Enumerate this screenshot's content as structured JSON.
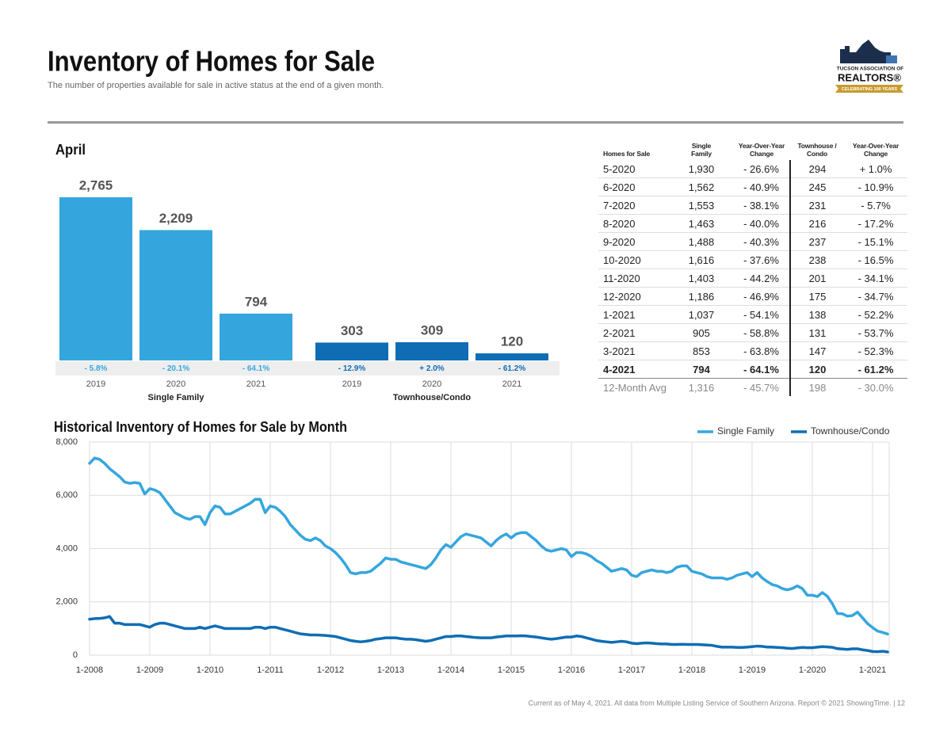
{
  "header": {
    "title": "Inventory of Homes for Sale",
    "subtitle": "The number of properties available for sale in active status at the end of a given month."
  },
  "logo": {
    "line1": "TUCSON ASSOCIATION OF",
    "line2": "REALTORS®",
    "line3": "CELEBRATING 100 YEARS"
  },
  "chart_data": [
    {
      "type": "bar",
      "title": "April",
      "groups": [
        {
          "name": "Single Family",
          "color": "#35a6dd",
          "categories": [
            "2019",
            "2020",
            "2021"
          ],
          "values": [
            2765,
            2209,
            794
          ],
          "value_labels": [
            "2,765",
            "2,209",
            "794"
          ],
          "change_labels": [
            "- 5.8%",
            "- 20.1%",
            "- 64.1%"
          ]
        },
        {
          "name": "Townhouse/Condo",
          "color": "#0f6db5",
          "categories": [
            "2019",
            "2020",
            "2021"
          ],
          "values": [
            303,
            309,
            120
          ],
          "value_labels": [
            "303",
            "309",
            "120"
          ],
          "change_labels": [
            "- 12.9%",
            "+ 2.0%",
            "- 61.2%"
          ]
        }
      ]
    },
    {
      "type": "line",
      "title": "Historical Inventory of Homes for Sale by Month",
      "categories": [
        "1-2008",
        null,
        null,
        null,
        null,
        null,
        null,
        null,
        null,
        null,
        null,
        null,
        "1-2009",
        null,
        null,
        null,
        null,
        null,
        null,
        null,
        null,
        null,
        null,
        null,
        "1-2010",
        null,
        null,
        null,
        null,
        null,
        null,
        null,
        null,
        null,
        null,
        null,
        "1-2011",
        null,
        null,
        null,
        null,
        null,
        null,
        null,
        null,
        null,
        null,
        null,
        "1-2012",
        null,
        null,
        null,
        null,
        null,
        null,
        null,
        null,
        null,
        null,
        null,
        "1-2013",
        null,
        null,
        null,
        null,
        null,
        null,
        null,
        null,
        null,
        null,
        null,
        "1-2014",
        null,
        null,
        null,
        null,
        null,
        null,
        null,
        null,
        null,
        null,
        null,
        "1-2015",
        null,
        null,
        null,
        null,
        null,
        null,
        null,
        null,
        null,
        null,
        null,
        "1-2016",
        null,
        null,
        null,
        null,
        null,
        null,
        null,
        null,
        null,
        null,
        null,
        "1-2017",
        null,
        null,
        null,
        null,
        null,
        null,
        null,
        null,
        null,
        null,
        null,
        "1-2018",
        null,
        null,
        null,
        null,
        null,
        null,
        null,
        null,
        null,
        null,
        null,
        "1-2019",
        null,
        null,
        null,
        null,
        null,
        null,
        null,
        null,
        null,
        null,
        null,
        "1-2020",
        null,
        null,
        null,
        null,
        null,
        null,
        null,
        null,
        null,
        null,
        null,
        "1-2021",
        null,
        null,
        null
      ],
      "series": [
        {
          "name": "Single Family",
          "color": "#35a6dd",
          "values": [
            7200,
            7400,
            7350,
            7200,
            7000,
            6850,
            6700,
            6500,
            6450,
            6480,
            6450,
            6050,
            6250,
            6200,
            6100,
            5850,
            5600,
            5350,
            5250,
            5150,
            5100,
            5200,
            5200,
            4900,
            5350,
            5600,
            5550,
            5300,
            5300,
            5400,
            5500,
            5600,
            5700,
            5850,
            5850,
            5350,
            5600,
            5550,
            5400,
            5200,
            4900,
            4700,
            4500,
            4350,
            4300,
            4400,
            4300,
            4100,
            4000,
            3850,
            3650,
            3400,
            3100,
            3050,
            3100,
            3100,
            3150,
            3300,
            3450,
            3650,
            3600,
            3600,
            3500,
            3450,
            3400,
            3350,
            3300,
            3250,
            3400,
            3650,
            3950,
            4150,
            4050,
            4250,
            4450,
            4550,
            4500,
            4450,
            4400,
            4250,
            4100,
            4300,
            4450,
            4550,
            4400,
            4550,
            4600,
            4600,
            4450,
            4300,
            4100,
            3950,
            3900,
            3950,
            4000,
            3950,
            3700,
            3850,
            3850,
            3800,
            3700,
            3550,
            3450,
            3300,
            3150,
            3200,
            3250,
            3200,
            3000,
            2950,
            3100,
            3150,
            3200,
            3150,
            3150,
            3100,
            3150,
            3300,
            3350,
            3350,
            3150,
            3100,
            3050,
            2950,
            2900,
            2900,
            2900,
            2850,
            2900,
            3000,
            3050,
            3100,
            2950,
            3100,
            2900,
            2765,
            2650,
            2600,
            2500,
            2450,
            2500,
            2600,
            2500,
            2250,
            2250,
            2200,
            2350,
            2209,
            1930,
            1562,
            1553,
            1463,
            1488,
            1616,
            1403,
            1186,
            1037,
            905,
            853,
            794
          ]
        },
        {
          "name": "Townhouse/Condo",
          "color": "#0f6db5",
          "values": [
            1350,
            1370,
            1380,
            1400,
            1450,
            1200,
            1200,
            1150,
            1150,
            1150,
            1150,
            1100,
            1050,
            1150,
            1200,
            1200,
            1150,
            1100,
            1050,
            1000,
            1000,
            1000,
            1050,
            1000,
            1050,
            1100,
            1050,
            1000,
            1000,
            1000,
            1000,
            1000,
            1000,
            1050,
            1050,
            1000,
            1050,
            1050,
            1000,
            950,
            900,
            850,
            800,
            780,
            760,
            760,
            750,
            740,
            720,
            700,
            650,
            600,
            550,
            520,
            500,
            520,
            550,
            600,
            620,
            650,
            650,
            650,
            620,
            600,
            600,
            580,
            550,
            520,
            550,
            600,
            650,
            700,
            700,
            720,
            720,
            700,
            680,
            660,
            650,
            650,
            650,
            680,
            700,
            720,
            720,
            720,
            730,
            720,
            700,
            680,
            650,
            620,
            600,
            620,
            650,
            680,
            680,
            720,
            700,
            650,
            600,
            550,
            520,
            500,
            480,
            500,
            520,
            500,
            450,
            430,
            450,
            460,
            450,
            430,
            420,
            420,
            400,
            400,
            410,
            400,
            400,
            400,
            390,
            380,
            370,
            330,
            300,
            300,
            300,
            290,
            290,
            300,
            320,
            340,
            330,
            303,
            300,
            290,
            280,
            260,
            250,
            270,
            290,
            280,
            280,
            300,
            320,
            309,
            294,
            245,
            231,
            216,
            237,
            238,
            201,
            175,
            138,
            131,
            147,
            120
          ]
        }
      ],
      "ylim": [
        0,
        8000
      ],
      "yticks": [
        0,
        {
          "value": 2000,
          "label": "2,000"
        },
        {
          "value": 4000,
          "label": "4,000"
        },
        {
          "value": 6000,
          "label": "6,000"
        },
        {
          "value": 8000,
          "label": "8,000"
        }
      ],
      "grid": true,
      "legend": "top-right"
    }
  ],
  "table": {
    "columns": [
      "Homes for Sale",
      "Single Family",
      "Year-Over-Year Change",
      "Townhouse / Condo",
      "Year-Over-Year Change"
    ],
    "rows": [
      [
        "5-2020",
        "1,930",
        "- 26.6%",
        "294",
        "+ 1.0%"
      ],
      [
        "6-2020",
        "1,562",
        "- 40.9%",
        "245",
        "- 10.9%"
      ],
      [
        "7-2020",
        "1,553",
        "- 38.1%",
        "231",
        "- 5.7%"
      ],
      [
        "8-2020",
        "1,463",
        "- 40.0%",
        "216",
        "- 17.2%"
      ],
      [
        "9-2020",
        "1,488",
        "- 40.3%",
        "237",
        "- 15.1%"
      ],
      [
        "10-2020",
        "1,616",
        "- 37.6%",
        "238",
        "- 16.5%"
      ],
      [
        "11-2020",
        "1,403",
        "- 44.2%",
        "201",
        "- 34.1%"
      ],
      [
        "12-2020",
        "1,186",
        "- 46.9%",
        "175",
        "- 34.7%"
      ],
      [
        "1-2021",
        "1,037",
        "- 54.1%",
        "138",
        "- 52.2%"
      ],
      [
        "2-2021",
        "905",
        "- 58.8%",
        "131",
        "- 53.7%"
      ],
      [
        "3-2021",
        "853",
        "- 63.8%",
        "147",
        "- 52.3%"
      ],
      [
        "4-2021",
        "794",
        "- 64.1%",
        "120",
        "- 61.2%"
      ]
    ],
    "average": [
      "12-Month Avg",
      "1,316",
      "- 45.7%",
      "198",
      "- 30.0%"
    ]
  },
  "footer": "Current as of May 4, 2021. All data from Multiple Listing Service of Southern Arizona. Report © 2021 ShowingTime. | 12"
}
